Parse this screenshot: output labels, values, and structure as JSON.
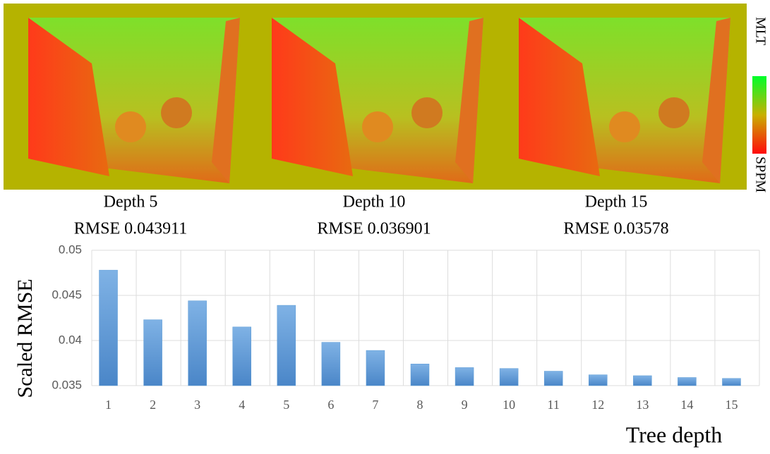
{
  "panels": [
    {
      "label": "Depth 5",
      "rmse": "RMSE 0.043911"
    },
    {
      "label": "Depth 10",
      "rmse": "RMSE 0.036901"
    },
    {
      "label": "Depth 15",
      "rmse": "RMSE 0.03578"
    }
  ],
  "colorbar": {
    "top": "MLT",
    "bottom": "SPPM"
  },
  "chart_data": {
    "type": "bar",
    "y_label": "Scaled RMSE",
    "x_label": "Tree depth",
    "categories": [
      1,
      2,
      3,
      4,
      5,
      6,
      7,
      8,
      9,
      10,
      11,
      12,
      13,
      14,
      15
    ],
    "values": [
      0.0478,
      0.0423,
      0.0444,
      0.0415,
      0.0439,
      0.0398,
      0.0389,
      0.0374,
      0.037,
      0.0369,
      0.0366,
      0.0362,
      0.0361,
      0.0359,
      0.0358
    ],
    "color": "#5b9bd5",
    "ylim": [
      0.035,
      0.05
    ],
    "yticks": [
      0.035,
      0.04,
      0.045,
      0.05
    ],
    "grid": true
  }
}
